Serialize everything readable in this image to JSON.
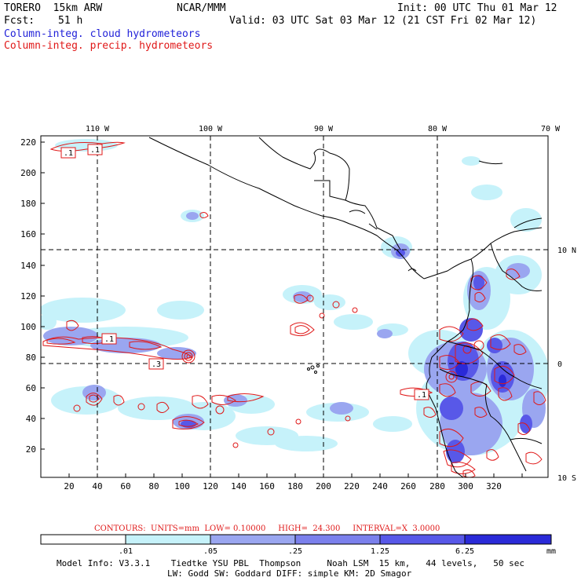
{
  "header": {
    "model": "TORERO  15km ARW",
    "center": "NCAR/MMM",
    "init": "Init: 00 UTC Thu 01 Mar 12",
    "fcst_label": "Fcst:",
    "fcst_value": "51 h",
    "valid": "Valid: 03 UTC Sat 03 Mar 12 (21 CST Fri 02 Mar 12)",
    "legend_blue": "Column-integ. cloud hydrometeors",
    "legend_red": "Column-integ. precip. hydrometeors"
  },
  "colors": {
    "blue_text": "#1f1fd8",
    "red_text": "#e01818",
    "shade_light": "#c6f2fa",
    "shade_mid": "#9aa6f0",
    "shade_dark": "#5858e8",
    "shade_darkest": "#2a2ad8"
  },
  "map": {
    "lon_labels": [
      "110 W",
      "100 W",
      "90 W",
      "80 W",
      "70 W"
    ],
    "lat_labels": [
      "10 N",
      "0",
      "10 S"
    ],
    "y_ticks": [
      "220",
      "200",
      "180",
      "160",
      "140",
      "120",
      "100",
      "80",
      "60",
      "40",
      "20"
    ],
    "x_ticks": [
      "20",
      "40",
      "60",
      "80",
      "100",
      "120",
      "140",
      "160",
      "180",
      "200",
      "220",
      "240",
      "260",
      "280",
      "300",
      "320"
    ],
    "contour_labels": [
      ".1",
      ".1",
      ".1",
      ".3",
      ".1"
    ]
  },
  "footer": {
    "contours": "CONTOURS:  UNITS=mm  LOW= 0.10000     HIGH=  24.300     INTERVAL=X  3.0000",
    "colorbar_values": [
      ".01",
      ".05",
      ".25",
      "1.25",
      "6.25"
    ],
    "colorbar_unit": "mm",
    "model_info_1": "Model Info: V3.3.1    Tiedtke YSU PBL  Thompson     Noah LSM  15 km,   44 levels,   50 sec",
    "model_info_2": "LW: Godd SW: Goddard DIFF: simple KM: 2D Smagor"
  }
}
